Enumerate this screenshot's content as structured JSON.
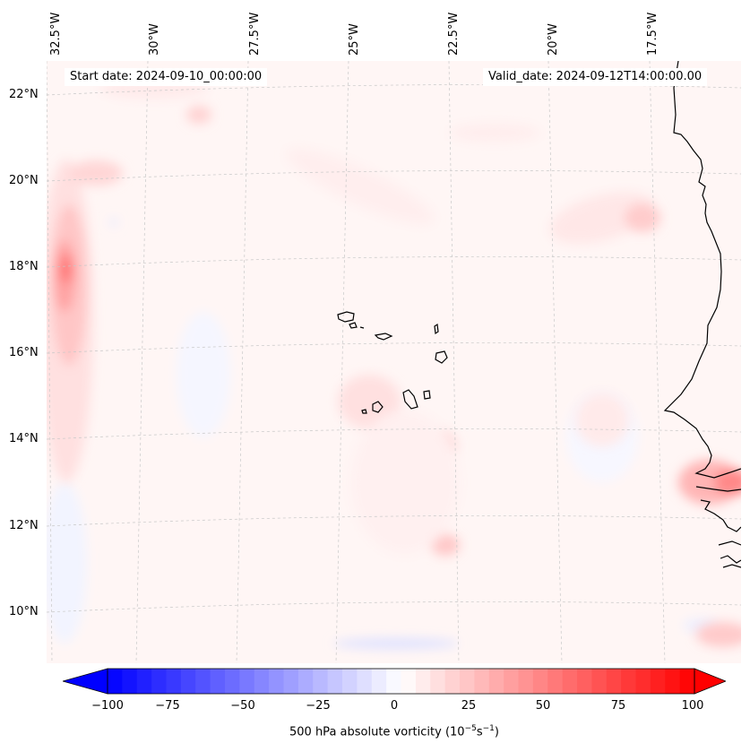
{
  "map": {
    "start_date": "Start date: 2024-09-10_00:00:00",
    "valid_date": "Valid_date: 2024-09-12T14:00:00.00",
    "lon_labels": [
      "32.5°W",
      "30°W",
      "27.5°W",
      "25°W",
      "22.5°W",
      "20°W",
      "17.5°W"
    ],
    "lat_labels": [
      "22°N",
      "20°N",
      "18°N",
      "16°N",
      "14°N",
      "12°N",
      "10°N"
    ],
    "colors": {
      "ocean_bg": "#fff5f5",
      "pos_max": "#ff0000",
      "neg_max": "#0000ff",
      "coast": "#000000"
    }
  },
  "colorbar": {
    "ticks": [
      "−100",
      "−75",
      "−50",
      "−25",
      "0",
      "25",
      "50",
      "75",
      "100"
    ],
    "label": "500 hPa absolute vorticity (10",
    "label_exp1": "−5",
    "label_mid": "s",
    "label_exp2": "−1",
    "label_end": ")",
    "vmin": -100,
    "vmax": 100,
    "levels": 40
  }
}
